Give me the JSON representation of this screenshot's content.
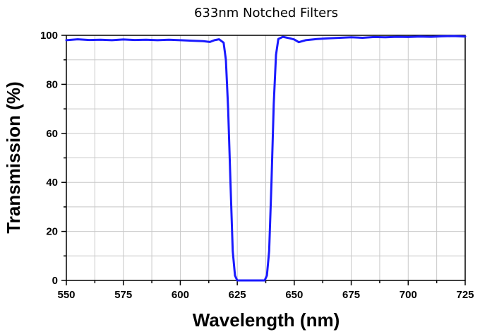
{
  "chart_data": {
    "type": "line",
    "title": "633nm Notched Filters",
    "xlabel": "Wavelength (nm)",
    "ylabel": "Transmission (%)",
    "xlim": [
      550,
      725
    ],
    "ylim": [
      0,
      100
    ],
    "x_ticks": [
      550,
      575,
      600,
      625,
      650,
      675,
      700,
      725
    ],
    "y_ticks": [
      0,
      20,
      40,
      60,
      80,
      100
    ],
    "grid": true,
    "legend": "none",
    "colors": {
      "line": "#1a1aff",
      "grid": "#c8c8c8",
      "axis": "#000000"
    },
    "series": [
      {
        "x": [
          550,
          555,
          560,
          565,
          570,
          575,
          580,
          585,
          590,
          595,
          600,
          605,
          610,
          613,
          615,
          617,
          619,
          620,
          621,
          622,
          623,
          624,
          625,
          630,
          635,
          637,
          638,
          639,
          640,
          641,
          642,
          643,
          645,
          648,
          650,
          652,
          655,
          660,
          665,
          670,
          675,
          680,
          685,
          690,
          695,
          700,
          705,
          710,
          715,
          720,
          725
        ],
        "y": [
          98.0,
          98.4,
          98.1,
          98.2,
          98.0,
          98.3,
          98.1,
          98.2,
          98.0,
          98.2,
          98.0,
          97.8,
          97.6,
          97.3,
          98.0,
          98.4,
          97.0,
          90.0,
          70.0,
          40.0,
          12.0,
          2.0,
          0.0,
          0.0,
          0.0,
          0.0,
          2.0,
          12.0,
          40.0,
          72.0,
          92.0,
          98.5,
          99.4,
          98.8,
          98.3,
          97.2,
          98.0,
          98.5,
          98.8,
          99.0,
          99.2,
          99.0,
          99.3,
          99.2,
          99.4,
          99.3,
          99.5,
          99.4,
          99.6,
          99.7,
          99.5
        ]
      }
    ]
  }
}
